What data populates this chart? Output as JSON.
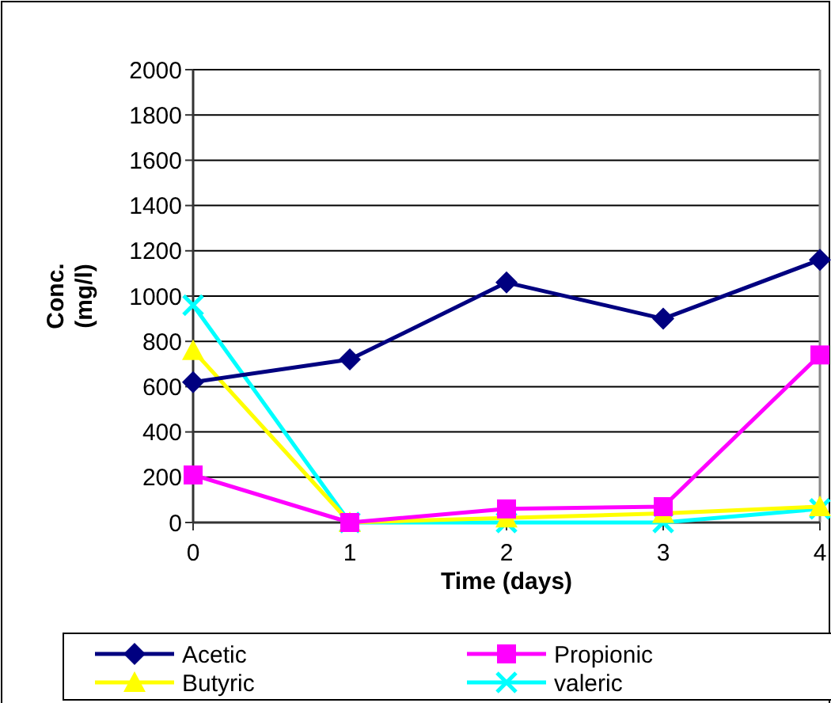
{
  "chart_data": {
    "type": "line",
    "xlabel": "Time (days)",
    "ylabel": "Conc. (mg/l)",
    "x": [
      0,
      1,
      2,
      3,
      4
    ],
    "xlim": [
      0,
      4
    ],
    "xticks": [
      0,
      1,
      2,
      3,
      4
    ],
    "ylim": [
      0,
      2000
    ],
    "yticks": [
      0,
      200,
      400,
      600,
      800,
      1000,
      1200,
      1400,
      1600,
      1800,
      2000
    ],
    "grid": "y",
    "legend": "bottom",
    "series": [
      {
        "name": "Acetic",
        "color": "#000080",
        "marker": "diamond",
        "values": [
          620,
          720,
          1060,
          900,
          1160
        ]
      },
      {
        "name": "Propionic",
        "color": "#ff00ff",
        "marker": "square",
        "values": [
          210,
          0,
          60,
          70,
          740
        ]
      },
      {
        "name": "Butyric",
        "color": "#ffff00",
        "marker": "triangle",
        "values": [
          760,
          0,
          20,
          40,
          70
        ]
      },
      {
        "name": "valeric",
        "color": "#00ffff",
        "marker": "cross",
        "values": [
          960,
          0,
          0,
          0,
          60
        ]
      }
    ]
  }
}
